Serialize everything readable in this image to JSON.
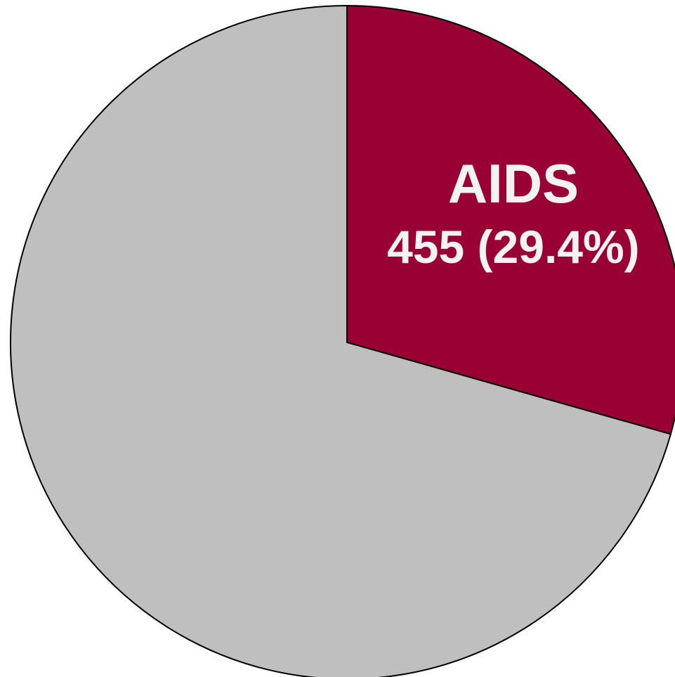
{
  "chart_data": {
    "type": "pie",
    "slices": [
      {
        "label": "AIDS",
        "value": 455,
        "percent": 29.4,
        "color": "#990033",
        "label_color": "#f2f2f2",
        "value_label": "455 (29.4%)"
      },
      {
        "label": "",
        "value": 1093,
        "percent": 70.6,
        "color": "#bfbfbf"
      }
    ],
    "start_angle": "12 o'clock",
    "direction": "clockwise",
    "legend": "none"
  }
}
